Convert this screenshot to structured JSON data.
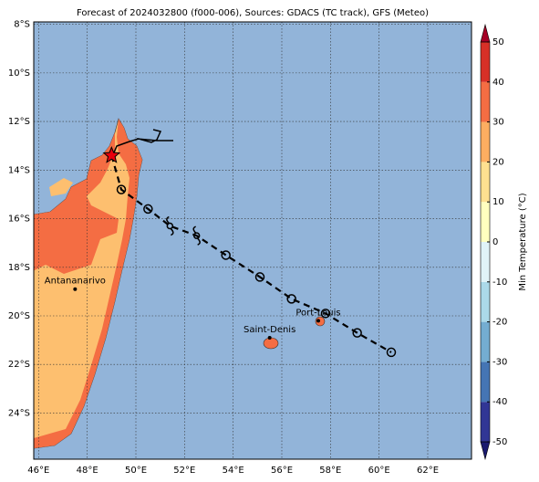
{
  "chart_data": {
    "type": "map",
    "title": "Forecast of 2024032800 (f000-006), Sources: GDACS (TC track), GFS (Meteo)",
    "lonlim": [
      45.8,
      63.8
    ],
    "latlim": [
      -25.9,
      -7.9
    ],
    "xticks": [
      {
        "value": 46,
        "label": "46°E"
      },
      {
        "value": 48,
        "label": "48°E"
      },
      {
        "value": 50,
        "label": "50°E"
      },
      {
        "value": 52,
        "label": "52°E"
      },
      {
        "value": 54,
        "label": "54°E"
      },
      {
        "value": 56,
        "label": "56°E"
      },
      {
        "value": 58,
        "label": "58°E"
      },
      {
        "value": 60,
        "label": "60°E"
      },
      {
        "value": 62,
        "label": "62°E"
      }
    ],
    "yticks": [
      {
        "value": -8,
        "label": "8°S"
      },
      {
        "value": -10,
        "label": "10°S"
      },
      {
        "value": -12,
        "label": "12°S"
      },
      {
        "value": -14,
        "label": "14°S"
      },
      {
        "value": -16,
        "label": "16°S"
      },
      {
        "value": -18,
        "label": "18°S"
      },
      {
        "value": -20,
        "label": "20°S"
      },
      {
        "value": -22,
        "label": "22°S"
      },
      {
        "value": -24,
        "label": "24°S"
      }
    ],
    "grid": true,
    "track": {
      "x": [
        49.0,
        49.4,
        50.5,
        51.4,
        52.5,
        53.7,
        55.1,
        56.4,
        57.8,
        59.1,
        60.5
      ],
      "y": [
        -13.4,
        -14.8,
        -15.6,
        -16.3,
        -16.7,
        -17.5,
        -18.4,
        -19.3,
        -19.9,
        -20.7,
        -21.5
      ],
      "markers": [
        "star",
        "circle",
        "circle",
        "storm",
        "storm",
        "circle",
        "circle",
        "circle",
        "circle",
        "circle",
        "circle"
      ]
    },
    "cities": [
      {
        "name": "Antananarivo",
        "lon": 47.5,
        "lat": -18.9
      },
      {
        "name": "Saint-Denis",
        "lon": 55.5,
        "lat": -20.9
      },
      {
        "name": "Port-Louis",
        "lon": 57.5,
        "lat": -20.2
      }
    ],
    "colorbar": {
      "label": "Min Temperature (°C)",
      "lim": [
        -50,
        50
      ],
      "ticks": [
        -50,
        -40,
        -30,
        -20,
        -10,
        0,
        10,
        20,
        30,
        40,
        50
      ],
      "colors": [
        "#313695",
        "#4575b4",
        "#74add1",
        "#abd9e9",
        "#e0f3f8",
        "#ffffbf",
        "#fee090",
        "#fdae61",
        "#f46d43",
        "#d73027"
      ],
      "under": "#1a1a6e",
      "over": "#a50026"
    }
  }
}
